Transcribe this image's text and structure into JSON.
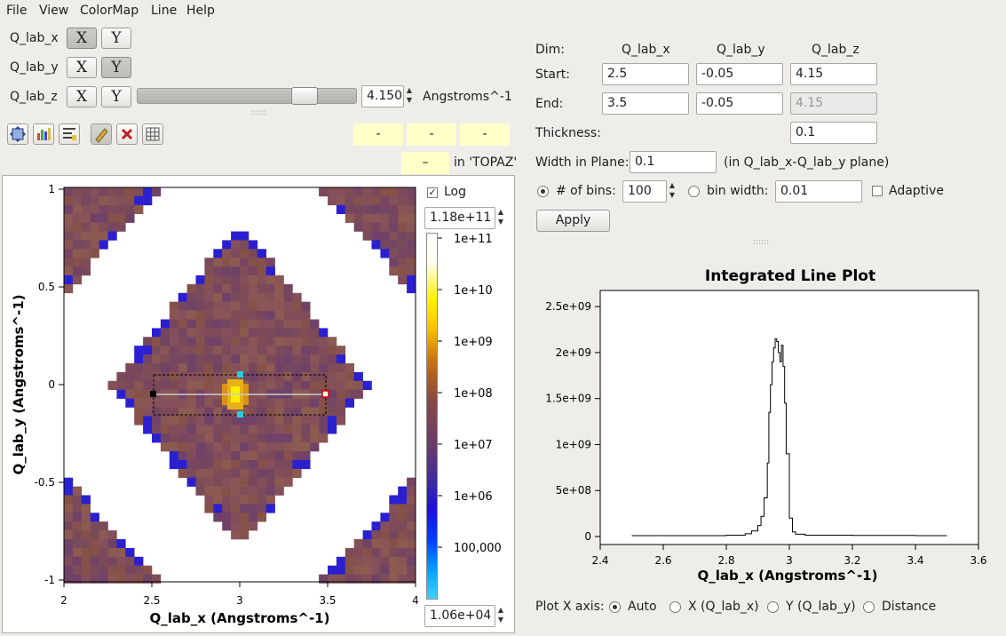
{
  "menu": [
    "File",
    "View",
    "ColorMap",
    "Line",
    "Help"
  ],
  "dims": [
    {
      "name": "Q_lab_x",
      "x": "X",
      "y": "Y",
      "active": "X"
    },
    {
      "name": "Q_lab_y",
      "x": "X",
      "y": "Y",
      "active": "Y"
    },
    {
      "name": "Q_lab_z",
      "x": "X",
      "y": "Y",
      "active": ""
    }
  ],
  "slider": {
    "value": "4.150",
    "units": "Angstroms^-1",
    "position": 0.8
  },
  "coords": [
    "-",
    "-",
    "-"
  ],
  "signal": {
    "value": "–",
    "workspace": "in 'TOPAZ'"
  },
  "colorbar": {
    "log_label": "Log",
    "log_checked": true,
    "max": "1.18e+11",
    "min": "1.06e+04",
    "ticks": [
      "1e+11",
      "1e+10",
      "1e+09",
      "1e+08",
      "1e+07",
      "1e+06",
      "100,000"
    ]
  },
  "slice_plot": {
    "xlabel": "Q_lab_x (Angstroms^-1)",
    "ylabel": "Q_lab_y (Angstroms^-1)",
    "xticks": [
      "2",
      "2.5",
      "3",
      "3.5",
      "4"
    ],
    "yticks": [
      "1",
      "0.5",
      "0",
      "-0.5",
      "-1"
    ],
    "line": {
      "start": [
        2.5,
        -0.05
      ],
      "end": [
        3.5,
        -0.05
      ],
      "width": 0.1
    }
  },
  "line_params": {
    "dim_label": "Dim:",
    "headers": [
      "Q_lab_x",
      "Q_lab_y",
      "Q_lab_z"
    ],
    "start_label": "Start:",
    "start": [
      "2.5",
      "-0.05",
      "4.15"
    ],
    "end_label": "End:",
    "end": [
      "3.5",
      "-0.05",
      "4.15"
    ],
    "thickness_label": "Thickness:",
    "thickness": "0.1",
    "width_label": "Width in Plane:",
    "width": "0.1",
    "width_note": "(in Q_lab_x-Q_lab_y plane)",
    "bins_label": "# of bins:",
    "bins": "100",
    "binwidth_label": "bin width:",
    "binwidth": "0.01",
    "adaptive_label": "Adaptive",
    "apply_label": "Apply"
  },
  "line_plot": {
    "title": "Integrated Line Plot",
    "xlabel": "Q_lab_x (Angstroms^-1)",
    "xticks": [
      "2.4",
      "2.6",
      "2.8",
      "3",
      "3.2",
      "3.4",
      "3.6"
    ],
    "yticks": [
      "2.5e+09",
      "2e+09",
      "1.5e+09",
      "1e+09",
      "5e+08",
      "0"
    ]
  },
  "plot_x_axis": {
    "label": "Plot X axis:",
    "options": [
      "Auto",
      "X (Q_lab_x)",
      "Y (Q_lab_y)",
      "Distance"
    ],
    "selected": "Auto"
  },
  "chart_data": {
    "type": "line",
    "title": "Integrated Line Plot",
    "xlabel": "Q_lab_x (Angstroms^-1)",
    "ylabel": "",
    "xlim": [
      2.4,
      3.6
    ],
    "ylim": [
      0,
      2500000000.0
    ],
    "series": [
      {
        "x": [
          2.5,
          2.7,
          2.8,
          2.86,
          2.88,
          2.9,
          2.91,
          2.92,
          2.93,
          2.935,
          2.94,
          2.945,
          2.95,
          2.955,
          2.96,
          2.965,
          2.97,
          2.975,
          2.98,
          2.985,
          2.99,
          3.0,
          3.01,
          3.02,
          3.05,
          3.2,
          3.4,
          3.5
        ],
        "y": [
          10000000.0,
          10000000.0,
          15000000.0,
          30000000.0,
          60000000.0,
          120000000.0,
          220000000.0,
          420000000.0,
          800000000.0,
          1350000000.0,
          1650000000.0,
          1900000000.0,
          2050000000.0,
          2150000000.0,
          2120000000.0,
          2000000000.0,
          1900000000.0,
          2080000000.0,
          1850000000.0,
          1450000000.0,
          900000000.0,
          200000000.0,
          50000000.0,
          25000000.0,
          15000000.0,
          12000000.0,
          10000000.0,
          10000000.0
        ]
      }
    ]
  }
}
